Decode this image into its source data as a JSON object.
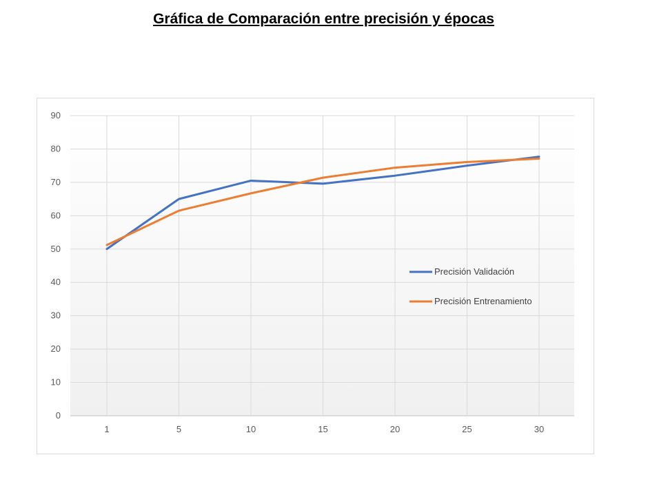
{
  "page": {
    "title": "Gráfica de Comparación entre precisión y épocas"
  },
  "chart_data": {
    "type": "line",
    "title": "",
    "xlabel": "",
    "ylabel": "",
    "categories": [
      "1",
      "5",
      "10",
      "15",
      "20",
      "25",
      "30"
    ],
    "ylim": [
      0,
      90
    ],
    "yticks": [
      0,
      10,
      20,
      30,
      40,
      50,
      60,
      70,
      80,
      90
    ],
    "grid": true,
    "legend_position": "right",
    "series": [
      {
        "name": "Precisión Validación",
        "color": "#4472C4",
        "values": [
          50,
          65,
          70.5,
          69.6,
          72,
          75,
          77.7
        ]
      },
      {
        "name": "Precisión Entrenamiento",
        "color": "#ED7D31",
        "values": [
          51.2,
          61.5,
          66.7,
          71.4,
          74.4,
          76.1,
          77.1
        ]
      }
    ]
  }
}
